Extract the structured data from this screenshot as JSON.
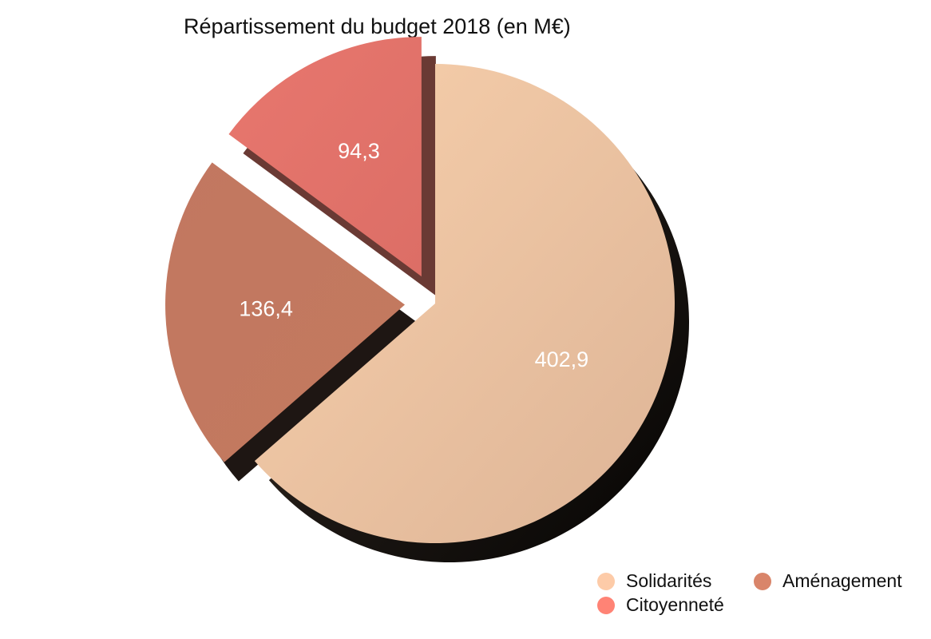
{
  "chart_data": {
    "type": "pie",
    "title": "Répartissement du budget 2018 (en M€)",
    "slices": [
      {
        "name": "Solidarités",
        "value": 402.9,
        "label": "402,9",
        "color": "#F2C7A3",
        "exploded": false
      },
      {
        "name": "Aménagement",
        "value": 136.4,
        "label": "136,4",
        "color": "#C97B62",
        "exploded": true
      },
      {
        "name": "Citoyenneté",
        "value": 94.3,
        "label": "94,3",
        "color": "#E7756D",
        "exploded": true
      }
    ],
    "legend": {
      "position": "bottom-right",
      "items": [
        {
          "name": "Solidarités",
          "color": "#FDCBA8"
        },
        {
          "name": "Aménagement",
          "color": "#D9856A"
        },
        {
          "name": "Citoyenneté",
          "color": "#FF8375"
        }
      ]
    },
    "style": "3d-exploded"
  }
}
